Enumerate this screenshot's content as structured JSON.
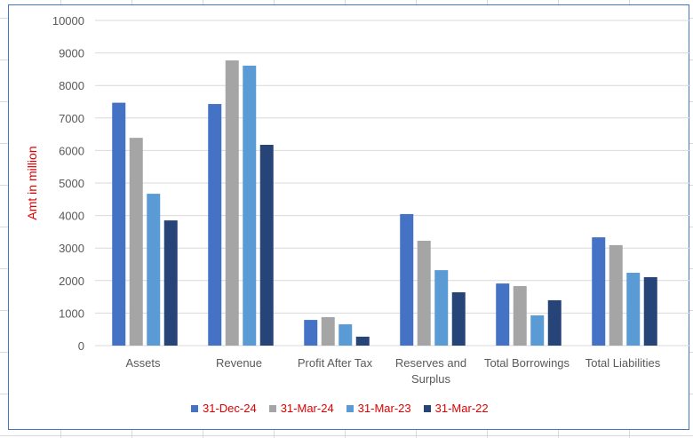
{
  "chart_data": {
    "type": "bar",
    "title": "",
    "xlabel": "",
    "ylabel": "Amt in million",
    "ylim": [
      0,
      10000
    ],
    "yticks": [
      "0",
      "1000",
      "2000",
      "3000",
      "4000",
      "5000",
      "6000",
      "7000",
      "8000",
      "9000",
      "10000"
    ],
    "grid": true,
    "legend_position": "bottom",
    "categories": [
      [
        "Assets"
      ],
      [
        "Revenue"
      ],
      [
        "Profit After Tax"
      ],
      [
        "Reserves and",
        "Surplus"
      ],
      [
        "Total Borrowings"
      ],
      [
        "Total Liabilities"
      ]
    ],
    "series": [
      {
        "name": "31-Dec-24",
        "color": "#4472C4",
        "values": [
          7470,
          7430,
          790,
          4045,
          1910,
          3330
        ]
      },
      {
        "name": "31-Mar-24",
        "color": "#A5A5A5",
        "values": [
          6390,
          8770,
          875,
          3225,
          1830,
          3090
        ]
      },
      {
        "name": "31-Mar-23",
        "color": "#5B9BD5",
        "values": [
          4670,
          8610,
          655,
          2320,
          930,
          2240
        ]
      },
      {
        "name": "31-Mar-22",
        "color": "#264478",
        "values": [
          3850,
          6175,
          275,
          1640,
          1395,
          2105
        ]
      }
    ]
  }
}
